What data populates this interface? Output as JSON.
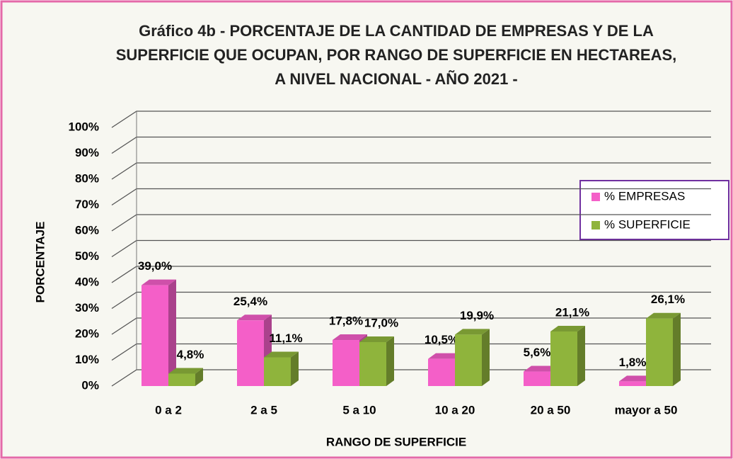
{
  "chart_data": {
    "type": "bar3d",
    "title": [
      "Gráfico 4b - PORCENTAJE DE LA CANTIDAD DE EMPRESAS Y DE LA",
      "SUPERFICIE QUE OCUPAN, POR RANGO DE SUPERFICIE EN HECTAREAS,",
      "A NIVEL NACIONAL - AÑO 2021 -"
    ],
    "x_label": "RANGO DE SUPERFICIE",
    "y_label": "PORCENTAJE",
    "categories": [
      "0 a 2",
      "2 a 5",
      "5 a 10",
      "10 a 20",
      "20 a 50",
      "mayor a 50"
    ],
    "series": [
      {
        "name": "% EMPRESAS",
        "color": "#f45fc8",
        "values": [
          39.0,
          25.4,
          17.8,
          10.5,
          5.6,
          1.8
        ],
        "value_labels": [
          "39,0%",
          "25,4%",
          "17,8%",
          "10,5%",
          "5,6%",
          "1,8%"
        ]
      },
      {
        "name": "% SUPERFICIE",
        "color": "#8fb43c",
        "values": [
          4.8,
          11.1,
          17.0,
          19.9,
          21.1,
          26.1
        ],
        "value_labels": [
          "4,8%",
          "11,1%",
          "17,0%",
          "19,9%",
          "21,1%",
          "26,1%"
        ]
      }
    ],
    "ylim": [
      0,
      100
    ],
    "yticks": [
      {
        "value": 0,
        "label": "0%"
      },
      {
        "value": 10,
        "label": "10%"
      },
      {
        "value": 20,
        "label": "20%"
      },
      {
        "value": 30,
        "label": "30%"
      },
      {
        "value": 40,
        "label": "40%"
      },
      {
        "value": 50,
        "label": "50%"
      },
      {
        "value": 60,
        "label": "60%"
      },
      {
        "value": 70,
        "label": "70%"
      },
      {
        "value": 80,
        "label": "80%"
      },
      {
        "value": 90,
        "label": "90%"
      },
      {
        "value": 100,
        "label": "100%"
      }
    ],
    "grid": true,
    "legend": "right"
  }
}
